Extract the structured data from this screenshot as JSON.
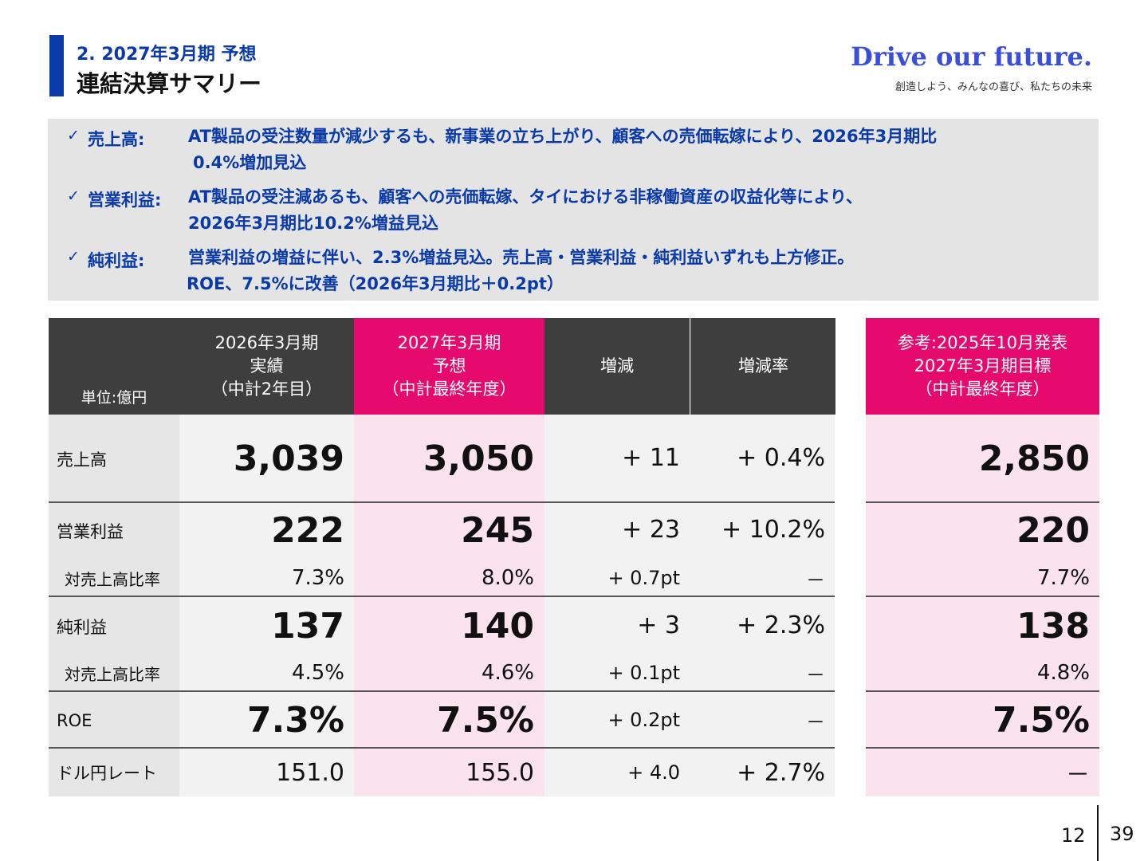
{
  "header": {
    "subtitle": "2. 2027年3月期 予想",
    "title": "連結決算サマリー",
    "brand_name": "Drive our future.",
    "brand_tagline": "創造しよう、みんなの喜び、私たちの未来"
  },
  "summary": [
    {
      "label": "売上高:",
      "lines": [
        "AT製品の受注数量が減少するも、新事業の立ち上がり、顧客への売価転嫁により、2026年3月期比",
        "0.4%増加見込"
      ]
    },
    {
      "label": "営業利益:",
      "lines": [
        "AT製品の受注減あるも、顧客への売価転嫁、タイにおける非稼働資産の収益化等により、",
        "2026年3月期比10.2%増益見込"
      ]
    },
    {
      "label": "純利益:",
      "lines": [
        "営業利益の増益に伴い、2.3%増益見込。売上高・営業利益・純利益いずれも上方修正。",
        "ROE、7.5%に改善（2026年3月期比＋0.2pt）"
      ]
    }
  ],
  "table": {
    "unit": "単位:億円",
    "headers": [
      [
        "2026年3月期",
        "実績",
        "（中計2年目）"
      ],
      [
        "2027年3月期",
        "予想",
        "（中計最終年度）"
      ],
      [
        "増減"
      ],
      [
        "増減率"
      ]
    ],
    "ref_header": [
      "参考:2025年10月発表",
      "2027年3月期目標",
      "（中計最終年度）"
    ],
    "rows": [
      {
        "label": "売上高",
        "fy26": "3,039",
        "fy27": "3,050",
        "diff": "+ 11",
        "rate": "+ 0.4%",
        "ref": "2,850"
      },
      {
        "label": "営業利益",
        "fy26": "222",
        "fy27": "245",
        "diff": "+ 23",
        "rate": "+ 10.2%",
        "ref": "220"
      },
      {
        "label": "対売上高比率",
        "fy26": "7.3%",
        "fy27": "8.0%",
        "diff": "+ 0.7pt",
        "rate": "－",
        "ref": "7.7%"
      },
      {
        "label": "純利益",
        "fy26": "137",
        "fy27": "140",
        "diff": "+ 3",
        "rate": "+ 2.3%",
        "ref": "138"
      },
      {
        "label": "対売上高比率",
        "fy26": "4.5%",
        "fy27": "4.6%",
        "diff": "+ 0.1pt",
        "rate": "－",
        "ref": "4.8%"
      },
      {
        "label": "ROE",
        "fy26": "7.3%",
        "fy27": "7.5%",
        "diff": "+ 0.2pt",
        "rate": "－",
        "ref": "7.5%"
      },
      {
        "label": "ドル円レート",
        "fy26": "151.0",
        "fy27": "155.0",
        "diff": "+ 4.0",
        "rate": "+ 2.7%",
        "ref": "－"
      }
    ]
  },
  "page": {
    "current": "12",
    "total": "39"
  }
}
